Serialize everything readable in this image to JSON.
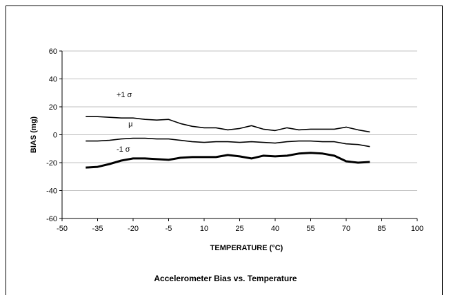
{
  "chart_data": {
    "type": "line",
    "title": "Accelerometer Bias vs. Temperature",
    "xlabel": "TEMPERATURE (°C)",
    "ylabel": "BIAS (mg)",
    "xlim": [
      -50,
      100
    ],
    "ylim": [
      -60,
      60
    ],
    "x_ticks": [
      -50,
      -35,
      -20,
      -5,
      10,
      25,
      40,
      55,
      70,
      85,
      100
    ],
    "y_ticks": [
      -60,
      -40,
      -20,
      0,
      20,
      40,
      60
    ],
    "grid": "horizontal",
    "annotations": [
      "+1 σ",
      "μ",
      "-1 σ"
    ],
    "series": [
      {
        "name": "+1 σ",
        "color": "#000000",
        "x": [
          -40,
          -35,
          -30,
          -25,
          -20,
          -15,
          -10,
          -5,
          0,
          5,
          10,
          15,
          20,
          25,
          30,
          35,
          40,
          45,
          50,
          55,
          60,
          65,
          70,
          75,
          80
        ],
        "y": [
          13,
          13,
          12.5,
          12,
          12,
          11,
          10.5,
          11,
          8,
          6,
          5,
          5,
          3.5,
          4.5,
          6.5,
          4,
          3,
          5,
          3.5,
          4,
          4,
          4,
          5.5,
          3.5,
          2
        ]
      },
      {
        "name": "μ",
        "color": "#000000",
        "x": [
          -40,
          -35,
          -30,
          -25,
          -20,
          -15,
          -10,
          -5,
          0,
          5,
          10,
          15,
          20,
          25,
          30,
          35,
          40,
          45,
          50,
          55,
          60,
          65,
          70,
          75,
          80
        ],
        "y": [
          -4.5,
          -4.5,
          -4,
          -3,
          -2.5,
          -2.5,
          -3,
          -3,
          -4,
          -5,
          -5.5,
          -5,
          -5,
          -5.5,
          -5,
          -5.5,
          -6,
          -5,
          -4.5,
          -4.5,
          -5,
          -5,
          -6.5,
          -7,
          -8.5
        ]
      },
      {
        "name": "-1 σ",
        "color": "#000000",
        "x": [
          -40,
          -35,
          -30,
          -25,
          -20,
          -15,
          -10,
          -5,
          0,
          5,
          10,
          15,
          20,
          25,
          30,
          35,
          40,
          45,
          50,
          55,
          60,
          65,
          70,
          75,
          80
        ],
        "y": [
          -23.5,
          -23,
          -21,
          -18.5,
          -17,
          -17,
          -17.5,
          -18,
          -16.5,
          -16,
          -16,
          -16,
          -14.5,
          -15.5,
          -17,
          -15,
          -15.5,
          -15,
          -13.5,
          -13,
          -13.5,
          -15,
          -19,
          -20,
          -19.5
        ]
      }
    ]
  }
}
